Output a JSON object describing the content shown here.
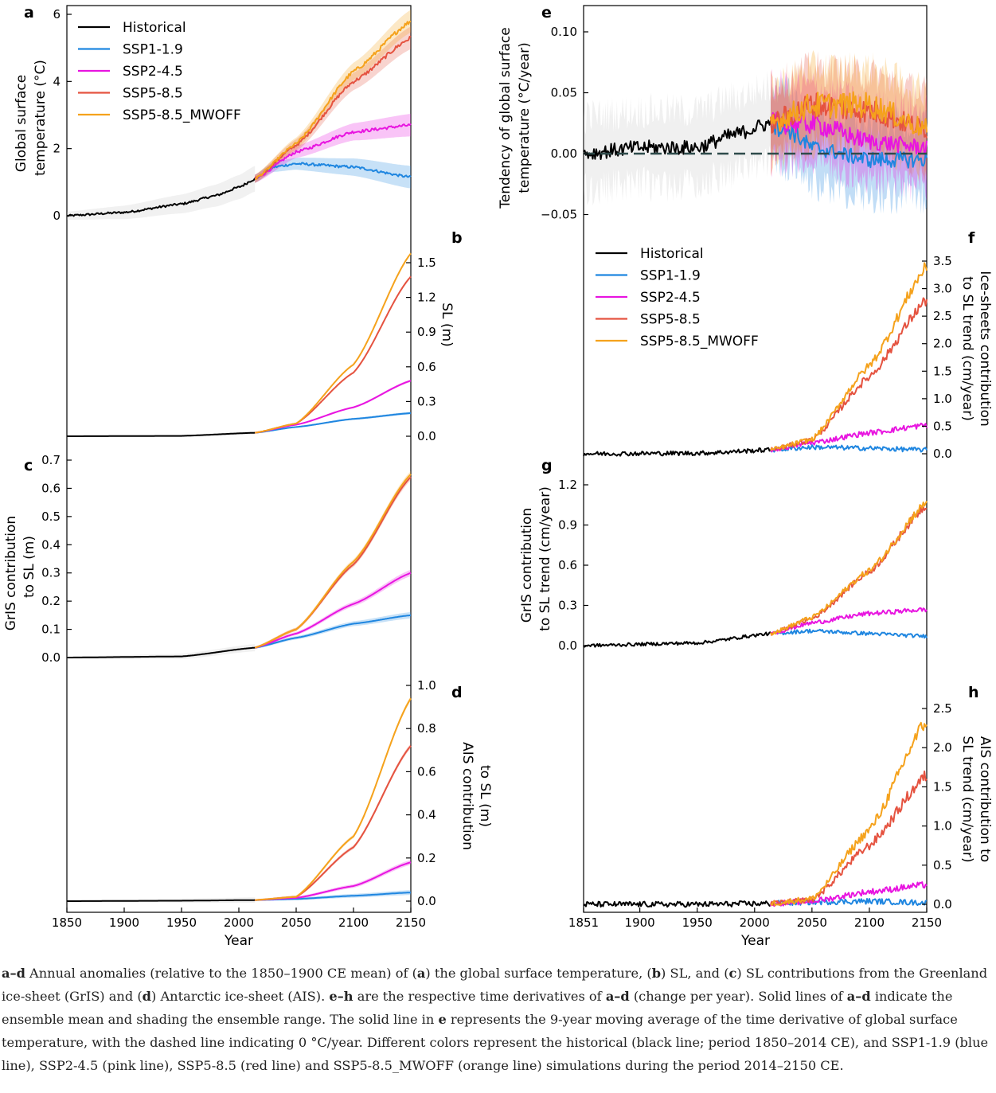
{
  "figure": {
    "xlabel": "Year",
    "left_xticks": [
      "1850",
      "1900",
      "1950",
      "2000",
      "2050",
      "2100",
      "2150"
    ],
    "right_xticks": [
      "1851",
      "1900",
      "1950",
      "2000",
      "2050",
      "2100",
      "2150"
    ],
    "legend": [
      "Historical",
      "SSP1-1.9",
      "SSP2-4.5",
      "SSP5-8.5",
      "SSP5-8.5_MWOFF"
    ],
    "colors": {
      "Historical": "#000000",
      "SSP1-1.9": "#1f86e0",
      "SSP2-4.5": "#e815e0",
      "SSP5-8.5": "#e55340",
      "SSP5-8.5_MWOFF": "#f5a21c",
      "zero_line": "#2e4b4b",
      "spread": "#c8c8c8"
    }
  },
  "panels": {
    "a": {
      "letter": "a",
      "ylabel1": "Global surface",
      "ylabel2": "temperature (°C)",
      "ticks": [
        "0",
        "2",
        "4",
        "6"
      ]
    },
    "b": {
      "letter": "b",
      "ylabel": "SL (m)",
      "ticks": [
        "0.0",
        "0.3",
        "0.6",
        "0.9",
        "1.2",
        "1.5"
      ]
    },
    "c": {
      "letter": "c",
      "ylabel1": "GrIS contribution",
      "ylabel2": "to SL (m)",
      "ticks": [
        "0.0",
        "0.1",
        "0.2",
        "0.3",
        "0.4",
        "0.5",
        "0.6",
        "0.7"
      ]
    },
    "d": {
      "letter": "d",
      "ylabel1": "AIS contribution",
      "ylabel2": "to SL (m)",
      "ticks": [
        "0.0",
        "0.2",
        "0.4",
        "0.6",
        "0.8",
        "1.0"
      ]
    },
    "e": {
      "letter": "e",
      "ylabel1": "Tendency of global surface",
      "ylabel2": "temperature (°C/year)",
      "ticks": [
        "−0.05",
        "0.00",
        "0.05",
        "0.10"
      ]
    },
    "f": {
      "letter": "f",
      "ylabel1": "Ice-sheets contribution",
      "ylabel2": "to SL trend (cm/year)",
      "ticks": [
        "0.0",
        "0.5",
        "1.0",
        "1.5",
        "2.0",
        "2.5",
        "3.0",
        "3.5"
      ]
    },
    "g": {
      "letter": "g",
      "ylabel1": "GrIS contribution",
      "ylabel2": "to SL trend (cm/year)",
      "ticks": [
        "0.0",
        "0.3",
        "0.6",
        "0.9",
        "1.2"
      ]
    },
    "h": {
      "letter": "h",
      "ylabel1": "AIS contribution to",
      "ylabel2": "SL trend (cm/year)",
      "ticks": [
        "0.0",
        "0.5",
        "1.0",
        "1.5",
        "2.0",
        "2.5"
      ]
    }
  },
  "chart_data": [
    {
      "panel": "a",
      "type": "line",
      "x": [
        1850,
        1900,
        1950,
        2000,
        2014,
        2050,
        2100,
        2150
      ],
      "series": [
        {
          "name": "Historical",
          "x": [
            1850,
            1900,
            1950,
            1980,
            2000,
            2014
          ],
          "values": [
            0.0,
            0.1,
            0.35,
            0.6,
            0.85,
            1.1
          ]
        },
        {
          "name": "SSP1-1.9",
          "x": [
            2014,
            2030,
            2050,
            2100,
            2150
          ],
          "values": [
            1.1,
            1.45,
            1.55,
            1.45,
            1.15
          ]
        },
        {
          "name": "SSP2-4.5",
          "x": [
            2014,
            2050,
            2100,
            2150
          ],
          "values": [
            1.1,
            1.9,
            2.5,
            2.7
          ]
        },
        {
          "name": "SSP5-8.5",
          "x": [
            2014,
            2050,
            2100,
            2150
          ],
          "values": [
            1.1,
            2.1,
            4.0,
            5.3
          ]
        },
        {
          "name": "SSP5-8.5_MWOFF",
          "x": [
            2014,
            2050,
            2100,
            2150
          ],
          "values": [
            1.1,
            2.15,
            4.3,
            5.8
          ]
        }
      ]
    },
    {
      "panel": "b",
      "type": "line",
      "series": [
        {
          "name": "Historical",
          "x": [
            1850,
            1950,
            2014
          ],
          "values": [
            0.0,
            0.003,
            0.03
          ]
        },
        {
          "name": "SSP1-1.9",
          "x": [
            2014,
            2050,
            2100,
            2150
          ],
          "values": [
            0.03,
            0.08,
            0.15,
            0.2
          ]
        },
        {
          "name": "SSP2-4.5",
          "x": [
            2014,
            2050,
            2100,
            2150
          ],
          "values": [
            0.03,
            0.1,
            0.25,
            0.48
          ]
        },
        {
          "name": "SSP5-8.5",
          "x": [
            2014,
            2050,
            2100,
            2150
          ],
          "values": [
            0.03,
            0.11,
            0.55,
            1.38
          ]
        },
        {
          "name": "SSP5-8.5_MWOFF",
          "x": [
            2014,
            2050,
            2100,
            2150
          ],
          "values": [
            0.03,
            0.11,
            0.62,
            1.58
          ]
        }
      ]
    },
    {
      "panel": "c",
      "type": "line",
      "series": [
        {
          "name": "Historical",
          "x": [
            1850,
            1950,
            2014
          ],
          "values": [
            0.0,
            0.004,
            0.035
          ]
        },
        {
          "name": "SSP1-1.9",
          "x": [
            2014,
            2050,
            2100,
            2150
          ],
          "values": [
            0.035,
            0.07,
            0.12,
            0.15
          ]
        },
        {
          "name": "SSP2-4.5",
          "x": [
            2014,
            2050,
            2100,
            2150
          ],
          "values": [
            0.035,
            0.085,
            0.19,
            0.3
          ]
        },
        {
          "name": "SSP5-8.5",
          "x": [
            2014,
            2050,
            2100,
            2150
          ],
          "values": [
            0.035,
            0.1,
            0.33,
            0.64
          ]
        },
        {
          "name": "SSP5-8.5_MWOFF",
          "x": [
            2014,
            2050,
            2100,
            2150
          ],
          "values": [
            0.035,
            0.1,
            0.34,
            0.65
          ]
        }
      ]
    },
    {
      "panel": "d",
      "type": "line",
      "series": [
        {
          "name": "Historical",
          "x": [
            1850,
            1950,
            2014
          ],
          "values": [
            0.0,
            0.002,
            0.005
          ]
        },
        {
          "name": "SSP1-1.9",
          "x": [
            2014,
            2050,
            2100,
            2150
          ],
          "values": [
            0.005,
            0.01,
            0.025,
            0.04
          ]
        },
        {
          "name": "SSP2-4.5",
          "x": [
            2014,
            2050,
            2100,
            2150
          ],
          "values": [
            0.005,
            0.015,
            0.07,
            0.18
          ]
        },
        {
          "name": "SSP5-8.5",
          "x": [
            2014,
            2050,
            2100,
            2150
          ],
          "values": [
            0.005,
            0.02,
            0.25,
            0.72
          ]
        },
        {
          "name": "SSP5-8.5_MWOFF",
          "x": [
            2014,
            2050,
            2100,
            2150
          ],
          "values": [
            0.005,
            0.02,
            0.3,
            0.94
          ]
        }
      ]
    },
    {
      "panel": "e",
      "type": "line",
      "series": [
        {
          "name": "Historical",
          "x": [
            1851,
            1900,
            1950,
            1980,
            2014
          ],
          "values": [
            0.0,
            0.005,
            0.005,
            0.015,
            0.025
          ]
        },
        {
          "name": "SSP1-1.9",
          "x": [
            2014,
            2030,
            2050,
            2100,
            2150
          ],
          "values": [
            0.025,
            0.02,
            0.005,
            -0.005,
            -0.005
          ]
        },
        {
          "name": "SSP2-4.5",
          "x": [
            2014,
            2050,
            2100,
            2150
          ],
          "values": [
            0.025,
            0.025,
            0.01,
            0.005
          ]
        },
        {
          "name": "SSP5-8.5",
          "x": [
            2014,
            2050,
            2100,
            2150
          ],
          "values": [
            0.025,
            0.04,
            0.035,
            0.02
          ]
        },
        {
          "name": "SSP5-8.5_MWOFF",
          "x": [
            2014,
            2050,
            2100,
            2150
          ],
          "values": [
            0.025,
            0.04,
            0.04,
            0.02
          ]
        }
      ]
    },
    {
      "panel": "f",
      "type": "line",
      "series": [
        {
          "name": "Historical",
          "x": [
            1851,
            1950,
            2014
          ],
          "values": [
            0.0,
            0.01,
            0.07
          ]
        },
        {
          "name": "SSP1-1.9",
          "x": [
            2014,
            2050,
            2100,
            2150
          ],
          "values": [
            0.07,
            0.12,
            0.1,
            0.07
          ]
        },
        {
          "name": "SSP2-4.5",
          "x": [
            2014,
            2050,
            2100,
            2150
          ],
          "values": [
            0.07,
            0.2,
            0.38,
            0.52
          ]
        },
        {
          "name": "SSP5-8.5",
          "x": [
            2014,
            2050,
            2100,
            2150
          ],
          "values": [
            0.07,
            0.25,
            1.4,
            2.8
          ]
        },
        {
          "name": "SSP5-8.5_MWOFF",
          "x": [
            2014,
            2050,
            2100,
            2150
          ],
          "values": [
            0.07,
            0.26,
            1.6,
            3.4
          ]
        }
      ]
    },
    {
      "panel": "g",
      "type": "line",
      "series": [
        {
          "name": "Historical",
          "x": [
            1851,
            1950,
            2014
          ],
          "values": [
            0.0,
            0.02,
            0.09
          ]
        },
        {
          "name": "SSP1-1.9",
          "x": [
            2014,
            2050,
            2100,
            2150
          ],
          "values": [
            0.09,
            0.11,
            0.09,
            0.07
          ]
        },
        {
          "name": "SSP2-4.5",
          "x": [
            2014,
            2050,
            2100,
            2150
          ],
          "values": [
            0.09,
            0.17,
            0.24,
            0.27
          ]
        },
        {
          "name": "SSP5-8.5",
          "x": [
            2014,
            2050,
            2100,
            2150
          ],
          "values": [
            0.09,
            0.2,
            0.55,
            1.05
          ]
        },
        {
          "name": "SSP5-8.5_MWOFF",
          "x": [
            2014,
            2050,
            2100,
            2150
          ],
          "values": [
            0.09,
            0.21,
            0.56,
            1.07
          ]
        }
      ]
    },
    {
      "panel": "h",
      "type": "line",
      "series": [
        {
          "name": "Historical",
          "x": [
            1851,
            1950,
            2014
          ],
          "values": [
            0.0,
            0.0,
            0.01
          ]
        },
        {
          "name": "SSP1-1.9",
          "x": [
            2014,
            2050,
            2100,
            2150
          ],
          "values": [
            0.01,
            0.03,
            0.04,
            0.02
          ]
        },
        {
          "name": "SSP2-4.5",
          "x": [
            2014,
            2050,
            2100,
            2150
          ],
          "values": [
            0.01,
            0.04,
            0.16,
            0.25
          ]
        },
        {
          "name": "SSP5-8.5",
          "x": [
            2014,
            2050,
            2100,
            2150
          ],
          "values": [
            0.01,
            0.06,
            0.75,
            1.65
          ]
        },
        {
          "name": "SSP5-8.5_MWOFF",
          "x": [
            2014,
            2050,
            2100,
            2150
          ],
          "values": [
            0.01,
            0.07,
            0.95,
            2.35
          ]
        }
      ]
    }
  ],
  "caption": {
    "p1": " Annual anomalies (relative to the 1850–1900 CE mean) of (",
    "p2": ") the global surface temperature, (",
    "p3": ") SL, and (",
    "p4": ") SL contributions from the Greenland ice-sheet (GrIS) and (",
    "p5": ") Antarctic ice-sheet (AIS). ",
    "p6": " are the respective time derivatives of ",
    "p7": " (change per year). Solid lines of ",
    "p8": " indicate the ensemble mean and shading the ensemble range. The solid line in ",
    "p9": " represents the 9-year moving average of the time derivative of global surface temperature, with the dashed line indicating 0 °C/year. Different colors represent the historical (black line; period 1850–2014 CE), and SSP1-1.9 (blue line), SSP2-4.5 (pink line), SSP5-8.5 (red line) and SSP5-8.5_MWOFF (orange line) simulations during the period 2014–2150 CE.",
    "b_ad": "a–d",
    "b_a": "a",
    "b_b": "b",
    "b_c": "c",
    "b_d": "d",
    "b_eh": "e–h",
    "b_e": "e"
  }
}
